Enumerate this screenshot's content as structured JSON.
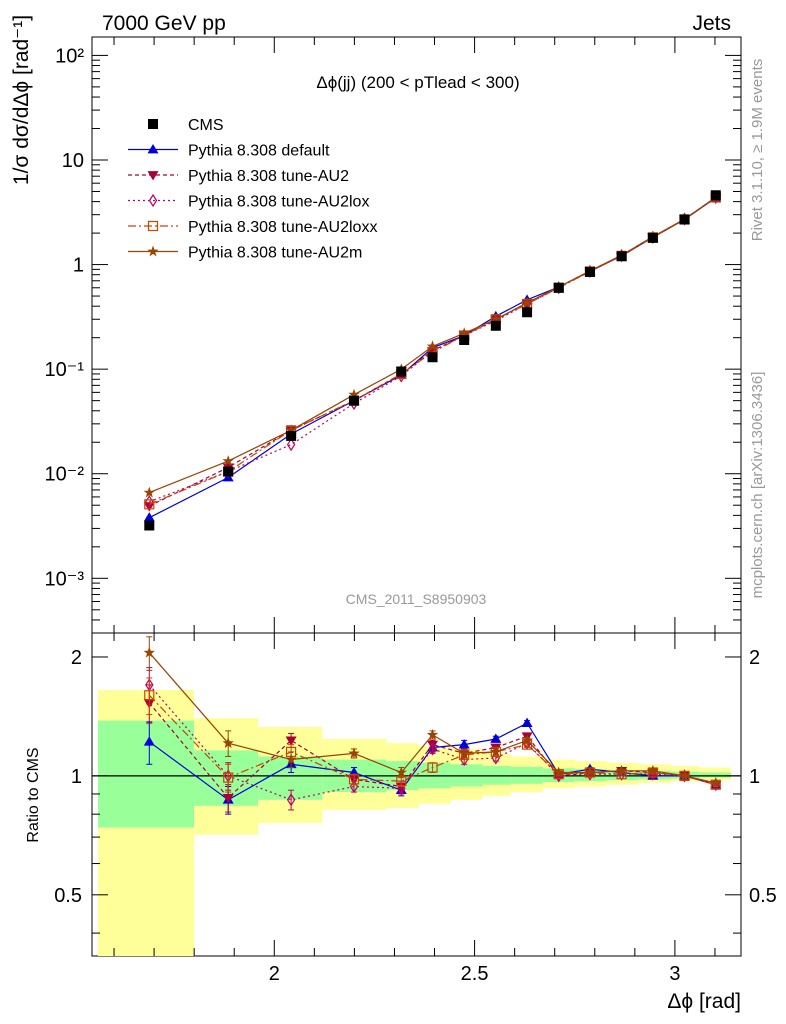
{
  "header": {
    "left": "7000 GeV pp",
    "right": "Jets"
  },
  "side_labels": {
    "top": "Rivet 3.1.10, ≥ 1.9M events",
    "bottom": "mcplots.cern.ch [arXiv:1306.3436]"
  },
  "watermark": "CMS_2011_S8950903",
  "chart_data": [
    {
      "type": "line",
      "title": "Δϕ(jj) (200 < pTlead <  300)",
      "y_scale": "log",
      "ylim": [
        0.0003,
        150
      ],
      "xlim": [
        1.545,
        3.165
      ],
      "ylabel": "1/σ dσ/dΔϕ [rad⁻¹]",
      "y_ticks": [
        {
          "value": 0.001,
          "label": "10⁻³"
        },
        {
          "value": 0.01,
          "label": "10⁻²"
        },
        {
          "value": 0.1,
          "label": "10⁻¹"
        },
        {
          "value": 1,
          "label": "1"
        },
        {
          "value": 10,
          "label": "10"
        },
        {
          "value": 100,
          "label": "10²"
        }
      ],
      "legend_position": "top-left",
      "x": [
        1.688,
        1.885,
        2.042,
        2.199,
        2.317,
        2.395,
        2.474,
        2.553,
        2.631,
        2.71,
        2.788,
        2.867,
        2.945,
        3.024,
        3.102
      ],
      "data": {
        "name": "CMS",
        "values": [
          0.0032,
          0.0105,
          0.023,
          0.05,
          0.095,
          0.13,
          0.19,
          0.26,
          0.35,
          0.6,
          0.85,
          1.2,
          1.8,
          2.7,
          4.6
        ]
      },
      "series": [
        {
          "name": "Pythia 8.308 default",
          "color": "#0000dd",
          "dash": "",
          "marker": "triangle",
          "values": [
            0.0038,
            0.0092,
            0.024,
            0.05,
            0.088,
            0.16,
            0.21,
            0.32,
            0.46,
            0.61,
            0.86,
            1.21,
            1.82,
            2.7,
            4.35
          ]
        },
        {
          "name": "Pythia 8.308 tune-AU2",
          "color": "#aa0033",
          "dash": "4,3",
          "marker": "triangle-down",
          "values": [
            0.0049,
            0.0115,
            0.026,
            0.05,
            0.09,
            0.15,
            0.21,
            0.3,
            0.43,
            0.61,
            0.87,
            1.22,
            1.82,
            2.72,
            4.4
          ]
        },
        {
          "name": "Pythia 8.308 tune-AU2lox",
          "color": "#bb0066",
          "dash": "2,3",
          "marker": "diamond",
          "values": [
            0.0054,
            0.0105,
            0.019,
            0.047,
            0.086,
            0.15,
            0.21,
            0.29,
            0.42,
            0.6,
            0.86,
            1.22,
            1.82,
            2.72,
            4.38
          ]
        },
        {
          "name": "Pythia 8.308 tune-AU2loxx",
          "color": "#cc4400",
          "dash": "8,3,2,3",
          "marker": "square-open",
          "values": [
            0.0051,
            0.0105,
            0.026,
            0.05,
            0.09,
            0.145,
            0.21,
            0.3,
            0.42,
            0.6,
            0.86,
            1.21,
            1.82,
            2.7,
            4.38
          ]
        },
        {
          "name": "Pythia 8.308 tune-AU2m",
          "color": "#994400",
          "dash": "",
          "marker": "star",
          "values": [
            0.0066,
            0.0132,
            0.026,
            0.057,
            0.1,
            0.165,
            0.22,
            0.3,
            0.43,
            0.61,
            0.87,
            1.23,
            1.85,
            2.72,
            4.4
          ]
        }
      ]
    },
    {
      "type": "line",
      "ylabel": "Ratio to CMS",
      "xlabel": "Δϕ [rad]",
      "xlim": [
        1.545,
        3.165
      ],
      "ylim": [
        0.35,
        2.3
      ],
      "y_scale": "log",
      "reference_line": 1,
      "x_ticks": [
        {
          "value": 2,
          "label": "2"
        },
        {
          "value": 2.5,
          "label": "2.5"
        },
        {
          "value": 3,
          "label": "3"
        }
      ],
      "y_ticks": [
        {
          "value": 0.5,
          "label": "0.5"
        },
        {
          "value": 1,
          "label": "1"
        },
        {
          "value": 2,
          "label": "2"
        }
      ],
      "bands": [
        {
          "x0": 1.56,
          "x1": 1.8,
          "g_lo": 0.74,
          "g_hi": 1.38,
          "y_lo": 0.35,
          "y_hi": 1.65
        },
        {
          "x0": 1.8,
          "x1": 1.96,
          "g_lo": 0.84,
          "g_hi": 1.16,
          "y_lo": 0.71,
          "y_hi": 1.4
        },
        {
          "x0": 1.96,
          "x1": 2.12,
          "g_lo": 0.87,
          "g_hi": 1.12,
          "y_lo": 0.76,
          "y_hi": 1.33
        },
        {
          "x0": 2.12,
          "x1": 2.28,
          "g_lo": 0.91,
          "g_hi": 1.1,
          "y_lo": 0.82,
          "y_hi": 1.24
        },
        {
          "x0": 2.28,
          "x1": 2.36,
          "g_lo": 0.92,
          "g_hi": 1.09,
          "y_lo": 0.83,
          "y_hi": 1.21
        },
        {
          "x0": 2.36,
          "x1": 2.44,
          "g_lo": 0.93,
          "g_hi": 1.08,
          "y_lo": 0.85,
          "y_hi": 1.19
        },
        {
          "x0": 2.44,
          "x1": 2.52,
          "g_lo": 0.94,
          "g_hi": 1.07,
          "y_lo": 0.87,
          "y_hi": 1.17
        },
        {
          "x0": 2.52,
          "x1": 2.59,
          "g_lo": 0.95,
          "g_hi": 1.06,
          "y_lo": 0.89,
          "y_hi": 1.14
        },
        {
          "x0": 2.59,
          "x1": 2.67,
          "g_lo": 0.955,
          "g_hi": 1.055,
          "y_lo": 0.91,
          "y_hi": 1.12
        },
        {
          "x0": 2.67,
          "x1": 2.75,
          "g_lo": 0.965,
          "g_hi": 1.045,
          "y_lo": 0.93,
          "y_hi": 1.1
        },
        {
          "x0": 2.75,
          "x1": 2.83,
          "g_lo": 0.97,
          "g_hi": 1.04,
          "y_lo": 0.94,
          "y_hi": 1.09
        },
        {
          "x0": 2.83,
          "x1": 2.91,
          "g_lo": 0.975,
          "g_hi": 1.035,
          "y_lo": 0.95,
          "y_hi": 1.08
        },
        {
          "x0": 2.91,
          "x1": 2.99,
          "g_lo": 0.98,
          "g_hi": 1.03,
          "y_lo": 0.96,
          "y_hi": 1.07
        },
        {
          "x0": 2.99,
          "x1": 3.06,
          "g_lo": 0.985,
          "g_hi": 1.025,
          "y_lo": 0.97,
          "y_hi": 1.06
        },
        {
          "x0": 3.06,
          "x1": 3.14,
          "g_lo": 0.99,
          "g_hi": 1.02,
          "y_lo": 0.975,
          "y_hi": 1.05
        }
      ],
      "x": [
        1.688,
        1.885,
        2.042,
        2.199,
        2.317,
        2.395,
        2.474,
        2.553,
        2.631,
        2.71,
        2.788,
        2.867,
        2.945,
        3.024,
        3.102
      ],
      "series": [
        {
          "name": "Pythia 8.308 default",
          "values": [
            1.22,
            0.87,
            1.07,
            1.02,
            0.92,
            1.18,
            1.2,
            1.24,
            1.36,
            1.01,
            1.04,
            1.02,
            1.0,
            1.0,
            0.95
          ],
          "err": [
            0.15,
            0.07,
            0.05,
            0.03,
            0.03,
            0.03,
            0.03,
            0.02,
            0.02,
            0.01,
            0.01,
            0.01,
            0.01,
            0.01,
            0.01
          ]
        },
        {
          "name": "Pythia 8.308 tune-AU2",
          "values": [
            1.53,
            0.88,
            1.23,
            0.98,
            0.94,
            1.2,
            1.14,
            1.18,
            1.26,
            1.0,
            1.02,
            1.03,
            1.02,
            1.0,
            0.95
          ],
          "err": [
            0.17,
            0.07,
            0.05,
            0.03,
            0.03,
            0.03,
            0.03,
            0.02,
            0.02,
            0.01,
            0.01,
            0.01,
            0.01,
            0.01,
            0.01
          ]
        },
        {
          "name": "Pythia 8.308 tune-AU2lox",
          "values": [
            1.7,
            1.0,
            0.87,
            0.94,
            0.93,
            1.17,
            1.1,
            1.11,
            1.21,
            1.0,
            1.01,
            1.01,
            1.01,
            1.0,
            0.95
          ],
          "err": [
            0.18,
            0.08,
            0.05,
            0.03,
            0.03,
            0.03,
            0.03,
            0.02,
            0.02,
            0.01,
            0.01,
            0.01,
            0.01,
            0.01,
            0.01
          ]
        },
        {
          "name": "Pythia 8.308 tune-AU2loxx",
          "values": [
            1.6,
            0.99,
            1.15,
            0.98,
            0.97,
            1.05,
            1.13,
            1.15,
            1.2,
            1.01,
            1.02,
            1.01,
            1.02,
            1.0,
            0.95
          ],
          "err": [
            0.17,
            0.08,
            0.05,
            0.03,
            0.03,
            0.03,
            0.03,
            0.02,
            0.02,
            0.01,
            0.01,
            0.01,
            0.01,
            0.01,
            0.01
          ]
        },
        {
          "name": "Pythia 8.308 tune-AU2m",
          "values": [
            2.05,
            1.21,
            1.1,
            1.14,
            1.02,
            1.27,
            1.14,
            1.15,
            1.23,
            1.02,
            1.02,
            1.03,
            1.03,
            1.0,
            0.96
          ],
          "err": [
            0.2,
            0.09,
            0.05,
            0.03,
            0.03,
            0.03,
            0.03,
            0.02,
            0.02,
            0.01,
            0.01,
            0.01,
            0.01,
            0.01,
            0.01
          ]
        }
      ]
    }
  ]
}
